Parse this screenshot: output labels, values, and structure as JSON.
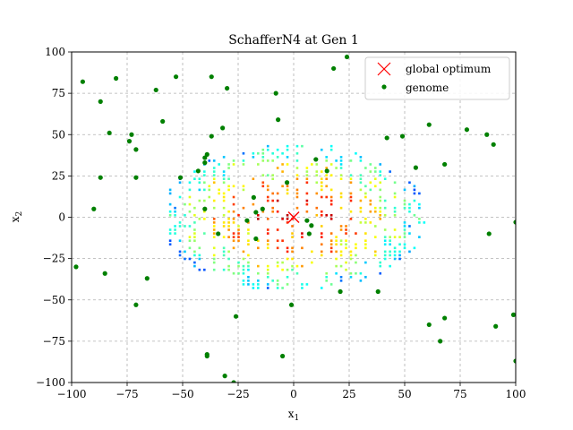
{
  "chart_data": {
    "type": "scatter",
    "title": "SchafferN4 at Gen 1",
    "xlabel": "x",
    "xlabel_sub": "1",
    "ylabel": "x",
    "ylabel_sub": "2",
    "xlim": [
      -100,
      100
    ],
    "ylim": [
      -100,
      100
    ],
    "xticks": [
      -100,
      -75,
      -50,
      -25,
      0,
      25,
      50,
      75,
      100
    ],
    "yticks": [
      -100,
      -75,
      -50,
      -25,
      0,
      25,
      50,
      75,
      100
    ],
    "grid": true,
    "legend_placement": "top-right",
    "contour": {
      "function": "SchafferN4",
      "colormap": "jet",
      "region_radius": [
        60,
        45
      ]
    },
    "series": [
      {
        "name": "global optimum",
        "marker": "x",
        "color": "#ff0000",
        "points": [
          [
            0,
            0
          ]
        ]
      },
      {
        "name": "genome",
        "marker": "o",
        "color": "#008000",
        "points": [
          [
            -95,
            82
          ],
          [
            -80,
            84
          ],
          [
            -87,
            70
          ],
          [
            -62,
            77
          ],
          [
            -53,
            85
          ],
          [
            -37,
            85
          ],
          [
            -30,
            78
          ],
          [
            -8,
            75
          ],
          [
            -7,
            59
          ],
          [
            18,
            90
          ],
          [
            24,
            97
          ],
          [
            -59,
            58
          ],
          [
            -83,
            51
          ],
          [
            -73,
            50
          ],
          [
            -74,
            46
          ],
          [
            -71,
            41
          ],
          [
            -32,
            54
          ],
          [
            -37,
            49
          ],
          [
            -39,
            38
          ],
          [
            -40,
            36
          ],
          [
            -40,
            33
          ],
          [
            -43,
            28
          ],
          [
            -87,
            24
          ],
          [
            -71,
            24
          ],
          [
            -51,
            24
          ],
          [
            -90,
            5
          ],
          [
            -40,
            5
          ],
          [
            -18,
            12
          ],
          [
            -3,
            21
          ],
          [
            10,
            35
          ],
          [
            15,
            28
          ],
          [
            61,
            56
          ],
          [
            78,
            53
          ],
          [
            87,
            50
          ],
          [
            90,
            44
          ],
          [
            49,
            49
          ],
          [
            42,
            48
          ],
          [
            55,
            30
          ],
          [
            68,
            32
          ],
          [
            -17,
            3
          ],
          [
            -14,
            5
          ],
          [
            -21,
            -2
          ],
          [
            -34,
            -10
          ],
          [
            -17,
            -13
          ],
          [
            6,
            -2
          ],
          [
            7,
            -10
          ],
          [
            8,
            -5
          ],
          [
            -98,
            -30
          ],
          [
            -85,
            -34
          ],
          [
            -66,
            -37
          ],
          [
            -71,
            -53
          ],
          [
            21,
            -45
          ],
          [
            38,
            -45
          ],
          [
            -26,
            -60
          ],
          [
            -1,
            -53
          ],
          [
            61,
            -65
          ],
          [
            68,
            -61
          ],
          [
            66,
            -75
          ],
          [
            88,
            -10
          ],
          [
            100,
            -3
          ],
          [
            99,
            -59
          ],
          [
            91,
            -66
          ],
          [
            -39,
            -83
          ],
          [
            -39,
            -84
          ],
          [
            -5,
            -84
          ],
          [
            -31,
            -96
          ],
          [
            -27,
            -100
          ],
          [
            100,
            -87
          ]
        ]
      }
    ]
  }
}
